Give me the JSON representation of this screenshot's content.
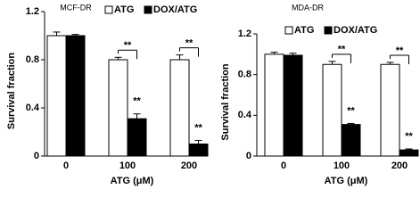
{
  "chart_data": [
    {
      "type": "bar",
      "title": "MCF-DR",
      "y_label": "Survival fraction",
      "x_label": "ATG (μM)",
      "categories": [
        "0",
        "100",
        "200"
      ],
      "series": [
        {
          "name": "ATG",
          "color": "#ffffff",
          "values": [
            1.0,
            0.8,
            0.8
          ],
          "errors": [
            0.03,
            0.02,
            0.04
          ]
        },
        {
          "name": "DOX/ATG",
          "color": "#000000",
          "values": [
            1.0,
            0.31,
            0.1
          ],
          "errors": [
            0.01,
            0.04,
            0.03
          ]
        }
      ],
      "annotations": [
        "**",
        "**",
        "**",
        "**"
      ],
      "ylim": [
        0,
        1.2
      ],
      "yticks": [
        0,
        0.4,
        0.8,
        1.2
      ]
    },
    {
      "type": "bar",
      "title": "MDA-DR",
      "y_label": "Survival fraction",
      "x_label": "ATG (μM)",
      "categories": [
        "0",
        "100",
        "200"
      ],
      "series": [
        {
          "name": "ATG",
          "color": "#ffffff",
          "values": [
            1.0,
            0.9,
            0.9
          ],
          "errors": [
            0.02,
            0.03,
            0.02
          ]
        },
        {
          "name": "DOX/ATG",
          "color": "#000000",
          "values": [
            0.99,
            0.31,
            0.06
          ],
          "errors": [
            0.02,
            0.01,
            0.01
          ]
        }
      ],
      "annotations": [
        "**",
        "**",
        "**",
        "**"
      ],
      "ylim": [
        0,
        1.2
      ],
      "yticks": [
        0,
        0.4,
        0.8,
        1.2
      ]
    }
  ]
}
